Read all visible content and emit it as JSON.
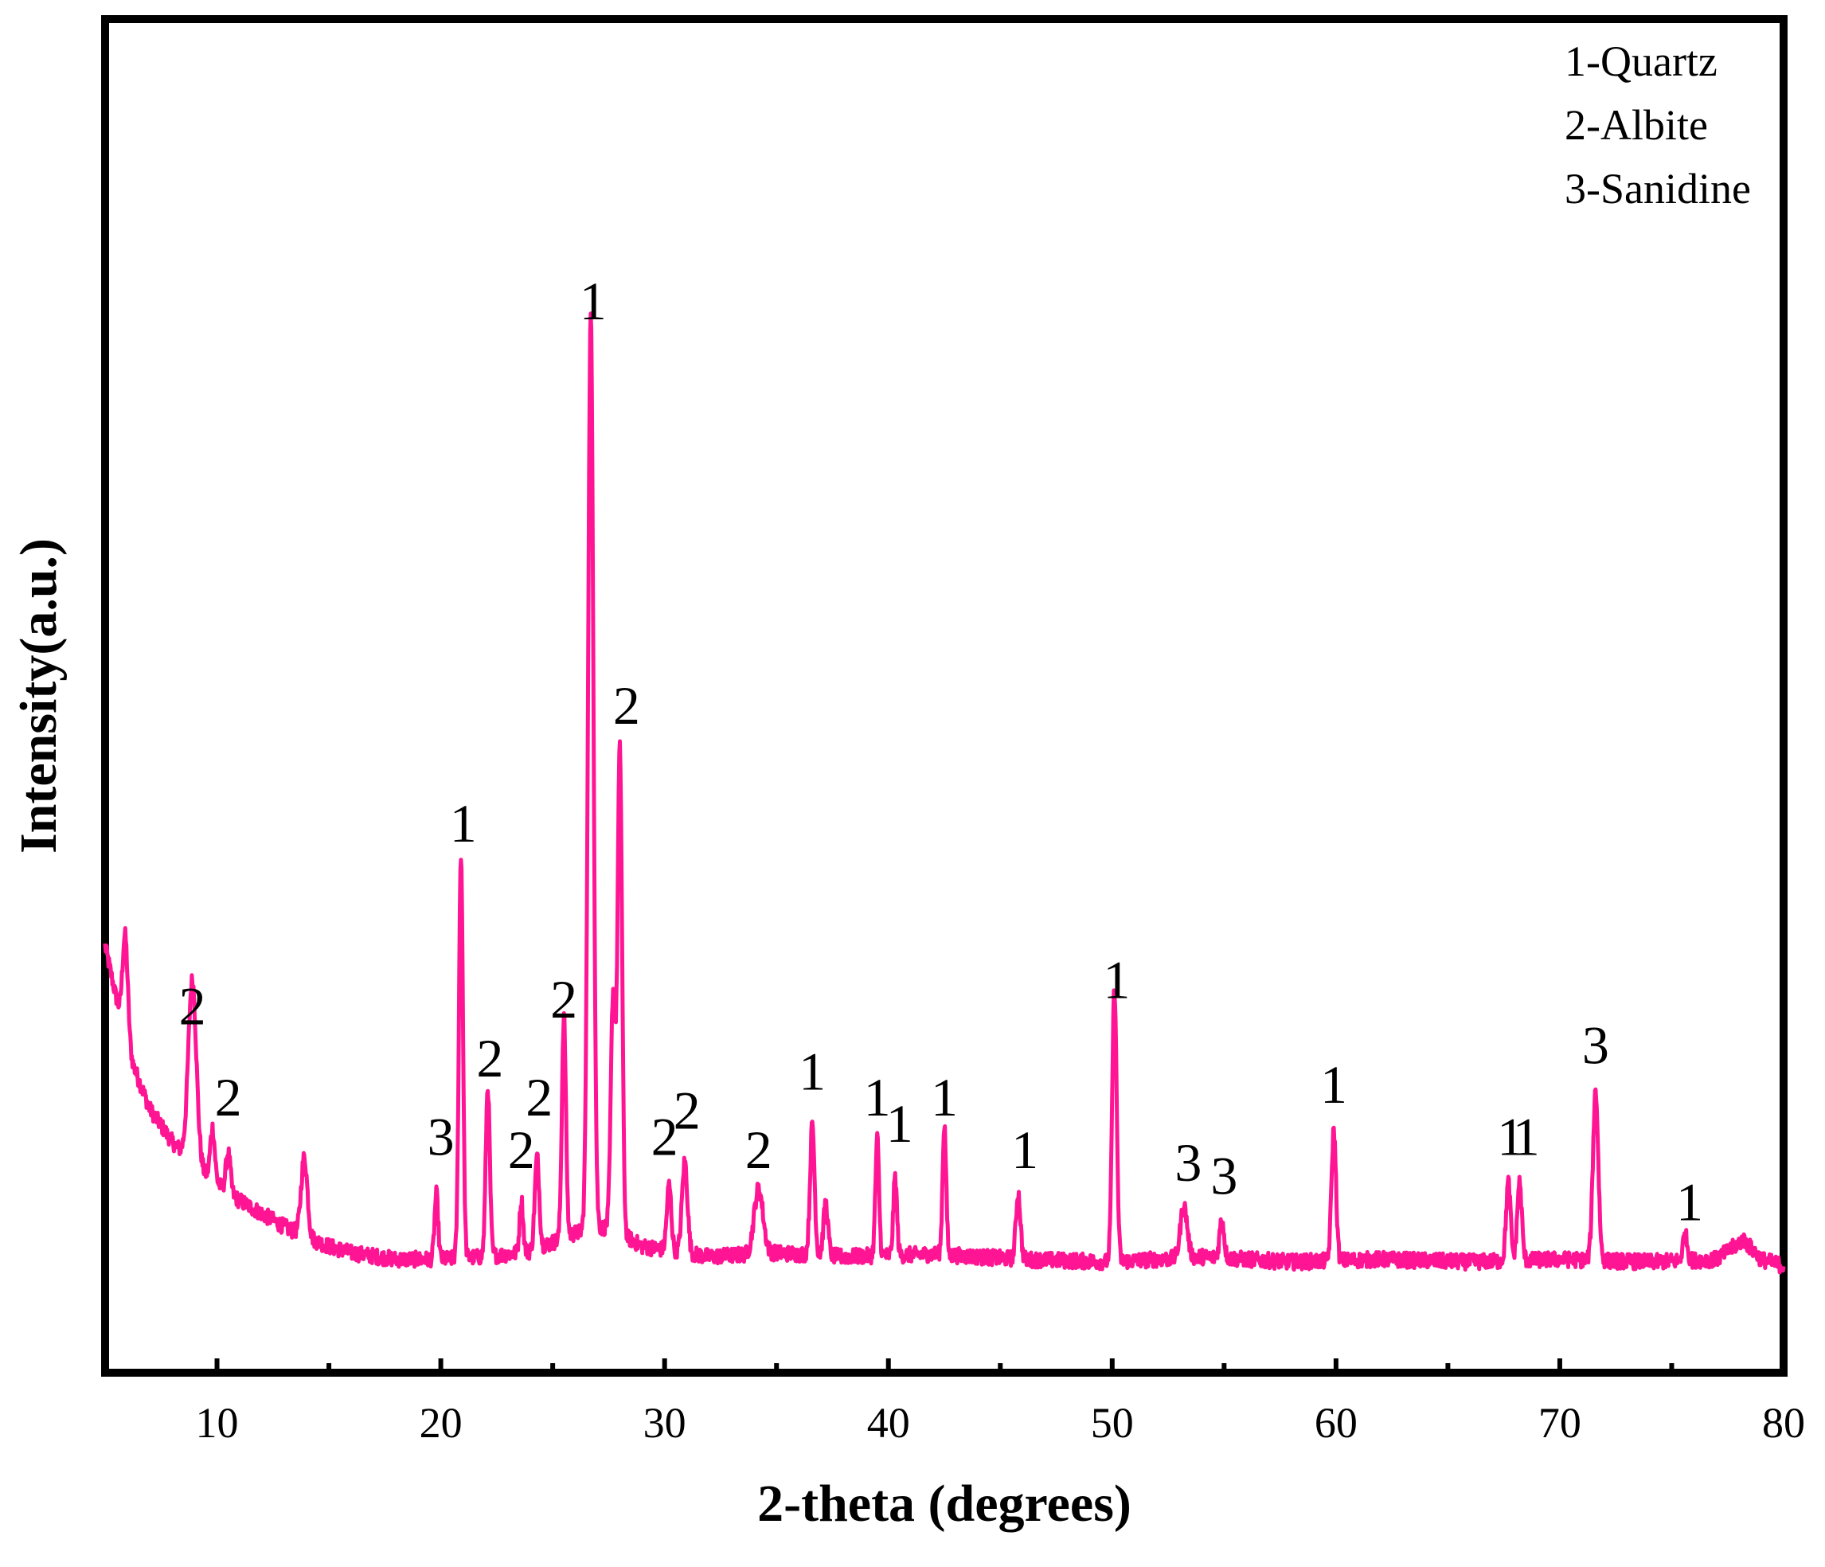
{
  "chart_data": {
    "type": "line",
    "xlabel": "2-theta (degrees)",
    "ylabel": "Intensity(a.u.)",
    "xlim": [
      5,
      80
    ],
    "ylim": [
      0,
      1
    ],
    "x_ticks": [
      10,
      20,
      30,
      40,
      50,
      60,
      70,
      80
    ],
    "x_tick_labels": [
      "10",
      "20",
      "30",
      "40",
      "50",
      "60",
      "70",
      "80"
    ],
    "legend": [
      "1-Quartz",
      "2-Albite",
      "3-Sanidine"
    ],
    "legend_position": "top-right",
    "grid": false,
    "series_color": "#ff1493",
    "background_curve": [
      [
        5.0,
        0.3
      ],
      [
        5.5,
        0.26
      ],
      [
        6.0,
        0.22
      ],
      [
        7.0,
        0.175
      ],
      [
        8.0,
        0.15
      ],
      [
        9.0,
        0.132
      ],
      [
        10.0,
        0.118
      ],
      [
        11.0,
        0.105
      ],
      [
        12.0,
        0.095
      ],
      [
        13.0,
        0.085
      ],
      [
        14.0,
        0.077
      ],
      [
        15.0,
        0.07
      ],
      [
        16.0,
        0.065
      ],
      [
        18.0,
        0.06
      ],
      [
        20.0,
        0.06
      ],
      [
        22.0,
        0.062
      ],
      [
        24.0,
        0.066
      ],
      [
        26.0,
        0.08
      ],
      [
        27.5,
        0.085
      ],
      [
        29.0,
        0.07
      ],
      [
        32.0,
        0.062
      ],
      [
        35.0,
        0.065
      ],
      [
        38.0,
        0.062
      ],
      [
        42.0,
        0.064
      ],
      [
        46.0,
        0.06
      ],
      [
        50.0,
        0.058
      ],
      [
        54.0,
        0.062
      ],
      [
        58.0,
        0.058
      ],
      [
        62.0,
        0.06
      ],
      [
        66.0,
        0.058
      ],
      [
        70.0,
        0.06
      ],
      [
        74.0,
        0.058
      ],
      [
        77.0,
        0.06
      ],
      [
        78.2,
        0.075
      ],
      [
        79.0,
        0.06
      ],
      [
        80.0,
        0.055
      ]
    ],
    "peaks": [
      {
        "x": 5.9,
        "height": 0.08,
        "width": 0.12
      },
      {
        "x": 8.9,
        "height": 0.14,
        "width": 0.18
      },
      {
        "x": 9.8,
        "height": 0.04,
        "width": 0.1
      },
      {
        "x": 10.5,
        "height": 0.03,
        "width": 0.1
      },
      {
        "x": 13.9,
        "height": 0.06,
        "width": 0.14
      },
      {
        "x": 19.8,
        "height": 0.05,
        "width": 0.08
      },
      {
        "x": 20.9,
        "height": 0.31,
        "width": 0.09
      },
      {
        "x": 22.1,
        "height": 0.13,
        "width": 0.09
      },
      {
        "x": 23.6,
        "height": 0.04,
        "width": 0.08
      },
      {
        "x": 24.3,
        "height": 0.07,
        "width": 0.1
      },
      {
        "x": 25.5,
        "height": 0.17,
        "width": 0.09
      },
      {
        "x": 26.7,
        "height": 0.7,
        "width": 0.12
      },
      {
        "x": 27.7,
        "height": 0.18,
        "width": 0.1
      },
      {
        "x": 28.0,
        "height": 0.37,
        "width": 0.1
      },
      {
        "x": 30.2,
        "height": 0.05,
        "width": 0.1
      },
      {
        "x": 30.9,
        "height": 0.07,
        "width": 0.12
      },
      {
        "x": 34.2,
        "height": 0.05,
        "width": 0.2
      },
      {
        "x": 36.6,
        "height": 0.1,
        "width": 0.1
      },
      {
        "x": 37.2,
        "height": 0.04,
        "width": 0.1
      },
      {
        "x": 39.5,
        "height": 0.09,
        "width": 0.08
      },
      {
        "x": 40.3,
        "height": 0.06,
        "width": 0.08
      },
      {
        "x": 42.5,
        "height": 0.1,
        "width": 0.08
      },
      {
        "x": 45.8,
        "height": 0.05,
        "width": 0.1
      },
      {
        "x": 50.1,
        "height": 0.21,
        "width": 0.1
      },
      {
        "x": 53.2,
        "height": 0.04,
        "width": 0.15
      },
      {
        "x": 54.9,
        "height": 0.03,
        "width": 0.1
      },
      {
        "x": 59.9,
        "height": 0.1,
        "width": 0.1
      },
      {
        "x": 67.7,
        "height": 0.06,
        "width": 0.1
      },
      {
        "x": 68.2,
        "height": 0.06,
        "width": 0.1
      },
      {
        "x": 71.6,
        "height": 0.13,
        "width": 0.12
      },
      {
        "x": 75.6,
        "height": 0.02,
        "width": 0.1
      }
    ],
    "annotations": [
      {
        "text": "2",
        "x": 8.9,
        "y": 0.24
      },
      {
        "text": "2",
        "x": 10.5,
        "y": 0.17
      },
      {
        "text": "3",
        "x": 20.0,
        "y": 0.14
      },
      {
        "text": "1",
        "x": 21.0,
        "y": 0.38
      },
      {
        "text": "2",
        "x": 22.2,
        "y": 0.2
      },
      {
        "text": "2",
        "x": 23.6,
        "y": 0.13
      },
      {
        "text": "2",
        "x": 24.4,
        "y": 0.17
      },
      {
        "text": "2",
        "x": 25.5,
        "y": 0.245
      },
      {
        "text": "1",
        "x": 26.8,
        "y": 0.78
      },
      {
        "text": "2",
        "x": 28.3,
        "y": 0.47
      },
      {
        "text": "2",
        "x": 30.0,
        "y": 0.14
      },
      {
        "text": "2",
        "x": 31.0,
        "y": 0.16
      },
      {
        "text": "2",
        "x": 34.2,
        "y": 0.13
      },
      {
        "text": "1",
        "x": 36.6,
        "y": 0.19
      },
      {
        "text": "1",
        "x": 39.5,
        "y": 0.17
      },
      {
        "text": "1",
        "x": 40.5,
        "y": 0.15
      },
      {
        "text": "1",
        "x": 42.5,
        "y": 0.17
      },
      {
        "text": "1",
        "x": 46.1,
        "y": 0.13
      },
      {
        "text": "1",
        "x": 50.2,
        "y": 0.26
      },
      {
        "text": "3",
        "x": 53.4,
        "y": 0.12
      },
      {
        "text": "3",
        "x": 55.0,
        "y": 0.11
      },
      {
        "text": "1",
        "x": 59.9,
        "y": 0.18
      },
      {
        "text": "1",
        "x": 67.8,
        "y": 0.14
      },
      {
        "text": "1",
        "x": 68.5,
        "y": 0.14
      },
      {
        "text": "3",
        "x": 71.6,
        "y": 0.21
      },
      {
        "text": "1",
        "x": 75.8,
        "y": 0.09
      }
    ]
  }
}
